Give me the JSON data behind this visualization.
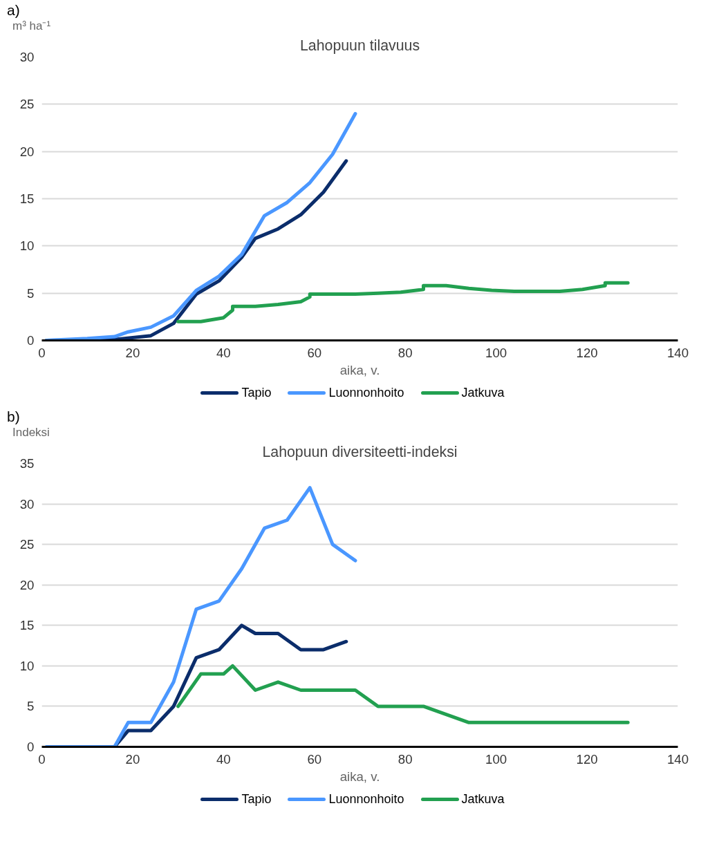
{
  "chart_data": [
    {
      "type": "line",
      "title": "Lahopuun tilavuus",
      "xlabel": "aika, v.",
      "ylabel": "m³ ha⁻¹",
      "annotations": [
        "a)"
      ],
      "xlim": [
        0,
        140
      ],
      "xticks": [
        0,
        20,
        40,
        60,
        80,
        100,
        120,
        140
      ],
      "ylim": [
        0,
        30
      ],
      "yticks": [
        0,
        5,
        10,
        15,
        20,
        25,
        30
      ],
      "grid": "y",
      "legend": "bottom",
      "marker": "none",
      "line_style": "solid",
      "series": [
        {
          "name": "Tapio",
          "color": "#0b2d6b",
          "x": [
            1,
            16,
            24,
            29,
            34,
            39,
            44,
            47,
            52,
            57,
            62,
            67
          ],
          "values": [
            0,
            0.1,
            0.5,
            1.8,
            4.9,
            6.3,
            8.8,
            10.8,
            11.8,
            13.3,
            15.7,
            19.0
          ]
        },
        {
          "name": "Luonnonhoito",
          "color": "#4a97ff",
          "x": [
            1,
            10,
            16,
            19,
            24,
            29,
            34,
            39,
            44,
            49,
            54,
            59,
            64,
            69
          ],
          "values": [
            0,
            0.2,
            0.4,
            0.9,
            1.4,
            2.6,
            5.3,
            6.8,
            9.1,
            13.2,
            14.6,
            16.7,
            19.7,
            24.0
          ]
        },
        {
          "name": "Jatkuva",
          "color": "#22a050",
          "x": [
            30,
            35,
            40,
            42,
            42,
            47,
            52,
            57,
            59,
            59,
            69,
            74,
            79,
            84,
            84,
            89,
            94,
            99,
            104,
            109,
            114,
            119,
            124,
            124,
            129
          ],
          "values": [
            2.0,
            2.0,
            2.4,
            3.2,
            3.6,
            3.6,
            3.8,
            4.1,
            4.6,
            4.9,
            4.9,
            5.0,
            5.1,
            5.4,
            5.8,
            5.8,
            5.5,
            5.3,
            5.2,
            5.2,
            5.2,
            5.4,
            5.8,
            6.1,
            6.1
          ]
        }
      ]
    },
    {
      "type": "line",
      "title": "Lahopuun diversiteetti-indeksi",
      "xlabel": "aika, v.",
      "ylabel": "Indeksi",
      "annotations": [
        "b)"
      ],
      "xlim": [
        0,
        140
      ],
      "xticks": [
        0,
        20,
        40,
        60,
        80,
        100,
        120,
        140
      ],
      "ylim": [
        0,
        35
      ],
      "yticks": [
        0,
        5,
        10,
        15,
        20,
        25,
        30,
        35
      ],
      "grid": "y",
      "legend": "bottom",
      "marker": "none",
      "line_style": "solid",
      "series": [
        {
          "name": "Tapio",
          "color": "#0b2d6b",
          "x": [
            16,
            19,
            24,
            29,
            34,
            39,
            44,
            47,
            52,
            57,
            62,
            67
          ],
          "values": [
            0,
            2,
            2,
            5,
            11,
            12,
            15,
            14,
            14,
            12,
            12,
            13
          ]
        },
        {
          "name": "Luonnonhoito",
          "color": "#4a97ff",
          "x": [
            1,
            16,
            19,
            24,
            29,
            34,
            39,
            44,
            49,
            54,
            59,
            64,
            69
          ],
          "values": [
            0,
            0,
            3,
            3,
            8,
            17,
            18,
            22,
            27,
            28,
            32,
            25,
            23
          ]
        },
        {
          "name": "Jatkuva",
          "color": "#22a050",
          "x": [
            30,
            35,
            40,
            42,
            47,
            52,
            57,
            62,
            69,
            74,
            84,
            94,
            129
          ],
          "values": [
            5,
            9,
            9,
            10,
            7,
            8,
            7,
            7,
            7,
            5,
            5,
            3,
            3
          ]
        }
      ]
    }
  ]
}
